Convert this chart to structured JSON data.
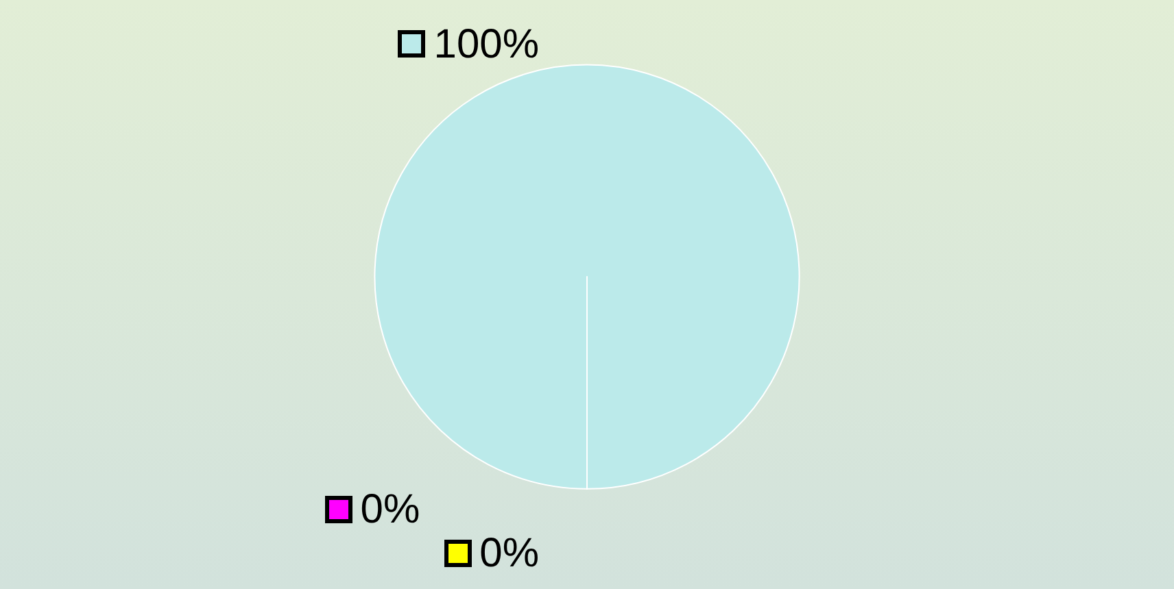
{
  "chart_data": {
    "type": "pie",
    "categories": [
      null,
      null,
      null
    ],
    "values": [
      100,
      0,
      0
    ],
    "colors": [
      "#bbeaea",
      "#ff00ff",
      "#ffff00"
    ],
    "value_labels": [
      "100%",
      "0%",
      "0%"
    ]
  }
}
